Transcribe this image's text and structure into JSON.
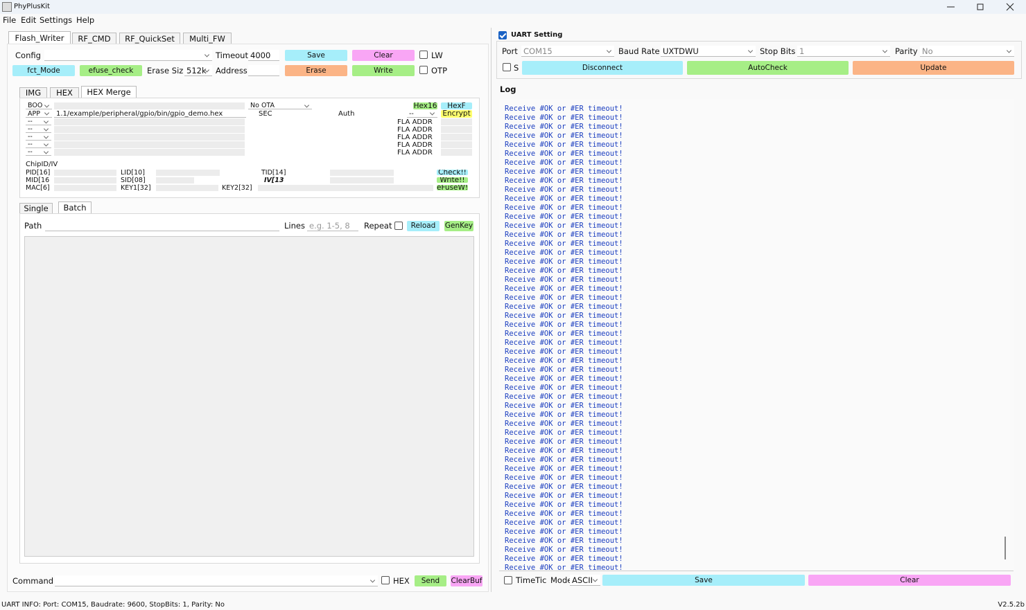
{
  "window": {
    "title": "PhyPlusKit"
  },
  "menu": [
    "File",
    "Edit",
    "Settings",
    "Help"
  ],
  "tabs": [
    "Flash_Writer",
    "RF_CMD",
    "RF_QuickSet",
    "Multi_FW"
  ],
  "flash": {
    "config_label": "Config",
    "timeout_label": "Timeout",
    "timeout": "4000",
    "save": "Save",
    "clear": "Clear",
    "lw": "LW",
    "fct_mode": "fct_Mode",
    "efuse_check": "efuse_check",
    "erase_size_label": "Erase Siz",
    "erase_size": "512k",
    "address_label": "Address",
    "erase": "Erase",
    "write": "Write",
    "otp": "OTP"
  },
  "image_tabs": [
    "IMG",
    "HEX",
    "HEX Merge"
  ],
  "hex_merge": {
    "boot": "BOO",
    "ota": "No OTA",
    "hex16": "Hex16",
    "hexf": "HexF",
    "app": "APP",
    "app_path": "1.1/example/peripheral/gpio/bin/gpio_demo.hex",
    "sec": "SEC",
    "auth": "Auth",
    "auth_mode": "--",
    "encrypt": "Encrypt",
    "rows": [
      "--",
      "--",
      "--",
      "--",
      "--"
    ],
    "fla_addr": [
      "FLA ADDR",
      "FLA ADDR",
      "FLA ADDR",
      "FLA ADDR",
      "FLA ADDR"
    ]
  },
  "chip": {
    "title": "ChipID/IV",
    "pid": "PID[16]",
    "lid": "LID[10]",
    "tid": "TID[14]",
    "check": "Check!!",
    "mid": "MID[16",
    "sid": "SID[08]",
    "iv": "IV[13",
    "write": "Write!!",
    "mac": "MAC[6]",
    "key1": "KEY1[32]",
    "key2": "KEY2[32]",
    "efuse_write": "eFuseW!!"
  },
  "batch_tabs": [
    "Single",
    "Batch"
  ],
  "batch": {
    "path_label": "Path",
    "lines_label": "Lines",
    "lines_placeholder": "e.g. 1-5, 8",
    "repeat": "Repeat",
    "reload": "Reload",
    "genkey": "GenKey"
  },
  "command": {
    "label": "Command",
    "hex": "HEX",
    "send": "Send",
    "clearbuf": "ClearBuf"
  },
  "uart": {
    "title": "UART Setting",
    "port_label": "Port",
    "port": "COM15",
    "baud_label": "Baud Rate",
    "baud": "UXTDWU",
    "stop_label": "Stop Bits",
    "stop": "1",
    "parity_label": "Parity",
    "parity": "No",
    "s": "S",
    "disconnect": "Disconnect",
    "autocheck": "AutoCheck",
    "update": "Update"
  },
  "log": {
    "title": "Log",
    "lines": [
      "Receive #OK or #ER timeout!",
      "Receive #OK or #ER timeout!",
      "Receive #OK or #ER timeout!",
      "Receive #OK or #ER timeout!",
      "Receive #OK or #ER timeout!",
      "Receive #OK or #ER timeout!",
      "Receive #OK or #ER timeout!",
      "Receive #OK or #ER timeout!",
      "Receive #OK or #ER timeout!",
      "Receive #OK or #ER timeout!",
      "Receive #OK or #ER timeout!",
      "Receive #OK or #ER timeout!",
      "Receive #OK or #ER timeout!",
      "Receive #OK or #ER timeout!",
      "Receive #OK or #ER timeout!",
      "Receive #OK or #ER timeout!",
      "Receive #OK or #ER timeout!",
      "Receive #OK or #ER timeout!",
      "Receive #OK or #ER timeout!",
      "Receive #OK or #ER timeout!",
      "Receive #OK or #ER timeout!",
      "Receive #OK or #ER timeout!",
      "Receive #OK or #ER timeout!",
      "Receive #OK or #ER timeout!",
      "Receive #OK or #ER timeout!",
      "Receive #OK or #ER timeout!",
      "Receive #OK or #ER timeout!",
      "Receive #OK or #ER timeout!",
      "Receive #OK or #ER timeout!",
      "Receive #OK or #ER timeout!",
      "Receive #OK or #ER timeout!",
      "Receive #OK or #ER timeout!",
      "Receive #OK or #ER timeout!",
      "Receive #OK or #ER timeout!",
      "Receive #OK or #ER timeout!",
      "Receive #OK or #ER timeout!",
      "Receive #OK or #ER timeout!",
      "Receive #OK or #ER timeout!",
      "Receive #OK or #ER timeout!",
      "Receive #OK or #ER timeout!",
      "Receive #OK or #ER timeout!",
      "Receive #OK or #ER timeout!",
      "Receive #OK or #ER timeout!",
      "Receive #OK or #ER timeout!",
      "Receive #OK or #ER timeout!",
      "Receive #OK or #ER timeout!",
      "Receive #OK or #ER timeout!",
      "Receive #OK or #ER timeout!",
      "Receive #OK or #ER timeout!",
      "Receive #OK or #ER timeout!",
      "Receive #OK or #ER timeout!",
      "Receive #OK or #ER timeout!"
    ]
  },
  "log_bar": {
    "timetic": "TimeTic",
    "mode_label": "Mode",
    "mode": "ASCII",
    "save": "Save",
    "clear": "Clear"
  },
  "status": {
    "info": "UART INFO: Port: COM15, Baudrate: 9600, StopBits: 1, Parity: No",
    "version": "V2.5.2b"
  }
}
